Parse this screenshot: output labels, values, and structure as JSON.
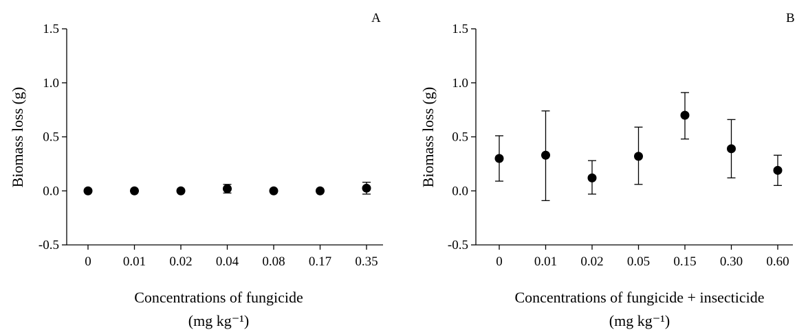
{
  "chart_data": [
    {
      "type": "scatter",
      "panel_label": "A",
      "title": "",
      "xlabel": "Concentrations of fungicide",
      "xlabel_unit": "(mg kg⁻¹)",
      "ylabel": "Biomass loss (g)",
      "ylim": [
        -0.5,
        1.5
      ],
      "yticks": [
        "-0.5",
        "0.0",
        "0.5",
        "1.0",
        "1.5"
      ],
      "categories": [
        "0",
        "0.01",
        "0.02",
        "0.04",
        "0.08",
        "0.17",
        "0.35"
      ],
      "series": [
        {
          "values": [
            0.0,
            0.0,
            0.0,
            0.02,
            0.0,
            0.0,
            0.025
          ],
          "err_low": [
            0.0,
            0.0,
            0.0,
            -0.02,
            0.0,
            0.0,
            -0.03
          ],
          "err_high": [
            0.0,
            0.0,
            0.0,
            0.06,
            0.0,
            0.0,
            0.08
          ]
        }
      ],
      "grid": false
    },
    {
      "type": "scatter",
      "panel_label": "B",
      "title": "",
      "xlabel": "Concentrations of fungicide + insecticide",
      "xlabel_unit": "(mg kg⁻¹)",
      "ylabel": "Biomass loss (g)",
      "ylim": [
        -0.5,
        1.5
      ],
      "yticks": [
        "-0.5",
        "0.0",
        "0.5",
        "1.0",
        "1.5"
      ],
      "categories": [
        "0",
        "0.01",
        "0.02",
        "0.05",
        "0.15",
        "0.30",
        "0.60"
      ],
      "series": [
        {
          "values": [
            0.3,
            0.33,
            0.12,
            0.32,
            0.7,
            0.39,
            0.19
          ],
          "err_low": [
            0.09,
            -0.09,
            -0.03,
            0.06,
            0.48,
            0.12,
            0.05
          ],
          "err_high": [
            0.51,
            0.74,
            0.28,
            0.59,
            0.91,
            0.66,
            0.33
          ]
        }
      ],
      "grid": false
    }
  ]
}
